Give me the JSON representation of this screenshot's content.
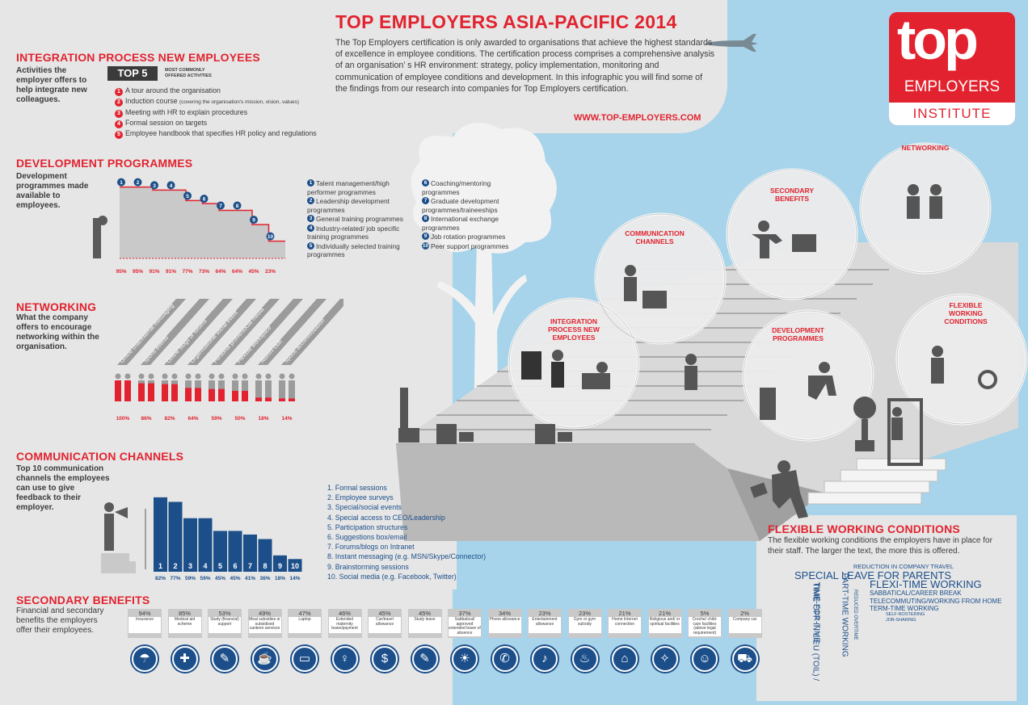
{
  "header": {
    "title": "TOP EMPLOYERS ASIA-PACIFIC 2014",
    "intro": "The Top Employers certification is only awarded to organisations that achieve the highest standards of excellence in employee conditions. The certification process comprises a comprehensive analysis of an organisation’ s HR environment: strategy, policy implementation, monitoring and communication of employee conditions and development. In this infographic you will find some of the findings from our research into companies for Top Employers certification.",
    "url": "WWW.TOP-EMPLOYERS.COM"
  },
  "logo": {
    "word": "top",
    "line1": "EMPLOYERS",
    "line2": "INSTITUTE"
  },
  "integration": {
    "title": "INTEGRATION PROCESS NEW EMPLOYEES",
    "desc": "Activities the employer offers to help integrate new colleagues.",
    "badge": "TOP 5",
    "badge_sub": "MOST COMMONLY OFFERED ACTIVITIES",
    "items": [
      {
        "n": "1",
        "text": "A tour around the organisation",
        "sub": ""
      },
      {
        "n": "2",
        "text": "Induction course",
        "sub": "(covering the organisation's mission, vision, values)"
      },
      {
        "n": "3",
        "text": "Meeting with HR to explain procedures",
        "sub": ""
      },
      {
        "n": "4",
        "text": "Formal session on targets",
        "sub": ""
      },
      {
        "n": "5",
        "text": "Employee handbook that specifies HR policy and regulations",
        "sub": ""
      }
    ]
  },
  "development": {
    "title": "DEVELOPMENT PROGRAMMES",
    "desc": "Development programmes made available to employees.",
    "numbers": [
      "1",
      "2",
      "3",
      "4",
      "5",
      "6",
      "7",
      "8",
      "9",
      "10"
    ],
    "values": [
      "95%",
      "95%",
      "91%",
      "91%",
      "77%",
      "73%",
      "64%",
      "64%",
      "45%",
      "23%"
    ],
    "list_left": [
      {
        "n": "1",
        "text": "Talent management/high performer programmes"
      },
      {
        "n": "2",
        "text": "Leadership development programmes"
      },
      {
        "n": "3",
        "text": "General training programmes"
      },
      {
        "n": "4",
        "text": "Industry-related/ job specific training programmes"
      },
      {
        "n": "5",
        "text": "Individually selected training programmes"
      }
    ],
    "list_right": [
      {
        "n": "6",
        "text": "Coaching/mentoring programmes"
      },
      {
        "n": "7",
        "text": "Graduate development programmes/traineeships"
      },
      {
        "n": "8",
        "text": "International exchange programmes"
      },
      {
        "n": "9",
        "text": "Job rotation programmes"
      },
      {
        "n": "10",
        "text": "Peer support programmes"
      }
    ]
  },
  "networking": {
    "title": "NETWORKING",
    "desc": "What the company offers to encourage networking within the organisation.",
    "labels": [
      "Online chat/internal messaging",
      "Sports events",
      "Online blogs or forums",
      "Organisational social event",
      "Personal profile/social media",
      "Flexible workspace",
      "Alumni club",
      "Sports accommodation"
    ],
    "values": [
      "100%",
      "86%",
      "82%",
      "64%",
      "59%",
      "50%",
      "18%",
      "14%"
    ]
  },
  "communication": {
    "title": "COMMUNICATION CHANNELS",
    "desc": "Top 10 communication channels the employees can use to give feedback to their employer.",
    "bar_numbers": [
      "1",
      "2",
      "3",
      "4",
      "5",
      "6",
      "7",
      "8",
      "9",
      "10"
    ],
    "bar_labels": [
      "82%",
      "77%",
      "59%",
      "59%",
      "45%",
      "45%",
      "41%",
      "36%",
      "18%",
      "14%"
    ],
    "list": [
      "1. Formal sessions",
      "2. Employee surveys",
      "3. Special/social events",
      "4. Special access to CEO/Leadership",
      "5. Participation structures",
      "6. Suggestions box/email",
      "7. Forums/blogs on Intranet",
      "8. Instant messaging (e.g. MSN/Skype/Connector)",
      "9. Brainstorming sessions",
      "10. Social media (e.g. Facebook, Twitter)"
    ]
  },
  "secondary": {
    "title": "SECONDARY BENEFITS",
    "desc": "Financial and secondary benefits the employers offer their employees.",
    "items": [
      {
        "pct": "94%",
        "label": "Insurance",
        "icon": "insurance-icon"
      },
      {
        "pct": "85%",
        "label": "Medical aid scheme",
        "icon": "medical-icon"
      },
      {
        "pct": "53%",
        "label": "Study (financial) support",
        "icon": "study-icon"
      },
      {
        "pct": "49%",
        "label": "Meal subsidies or subsidised canteen services",
        "icon": "meal-icon"
      },
      {
        "pct": "47%",
        "label": "Laptop",
        "icon": "laptop-icon"
      },
      {
        "pct": "46%",
        "label": "Extended maternity leave/payment",
        "icon": "maternity-icon"
      },
      {
        "pct": "45%",
        "label": "Car/travel allowance",
        "icon": "car-allowance-icon"
      },
      {
        "pct": "45%",
        "label": "Study leave",
        "icon": "study-leave-icon"
      },
      {
        "pct": "37%",
        "label": "Sabbatical/ approved extended leave of absence",
        "icon": "sabbatical-icon"
      },
      {
        "pct": "34%",
        "label": "Phone allowance",
        "icon": "phone-icon"
      },
      {
        "pct": "23%",
        "label": "Entertainment allowance",
        "icon": "entertainment-icon"
      },
      {
        "pct": "23%",
        "label": "Gym or gym subsidy",
        "icon": "gym-icon"
      },
      {
        "pct": "21%",
        "label": "Home Internet connection",
        "icon": "home-internet-icon"
      },
      {
        "pct": "21%",
        "label": "Religious and/ or spiritual facilities",
        "icon": "religious-icon"
      },
      {
        "pct": "5%",
        "label": "Creche/ child-care facilities (above legal requirement)",
        "icon": "childcare-icon"
      },
      {
        "pct": "2%",
        "label": "Company car",
        "icon": "company-car-icon"
      }
    ]
  },
  "flexible": {
    "title": "FLEXIBLE WORKING CONDITIONS",
    "desc": "The flexible working conditions the employers have in place for their staff. The larger the text, the more this is offered.",
    "cloud": {
      "w1": "REDUCTION IN COMPANY TRAVEL",
      "w2": "SPECIAL LEAVE FOR PARENTS",
      "w3": "FLEXI-TIME WORKING",
      "w4": "SABBATICAL/CAREER BREAK",
      "w5": "TELECOMMUTING/WORKING FROM HOME",
      "w6": "TERM-TIME WORKING",
      "w7": "SELF-ROSTERING",
      "w8": "JOB-SHARING",
      "v1": "TIME OFF IN LIEU (TOIL) /",
      "v2": "TIME-FOR-TIME",
      "v3": "PART-TIME WORKING",
      "v4": "REDUCED OVERTIME"
    }
  },
  "scene": {
    "bubbles": [
      "NETWORKING",
      "SECONDARY BENEFITS",
      "COMMUNICATION CHANNELS",
      "INTEGRATION PROCESS NEW EMPLOYEES",
      "DEVELOPMENT PROGRAMMES",
      "FLEXIBLE WORKING CONDITIONS"
    ]
  }
}
